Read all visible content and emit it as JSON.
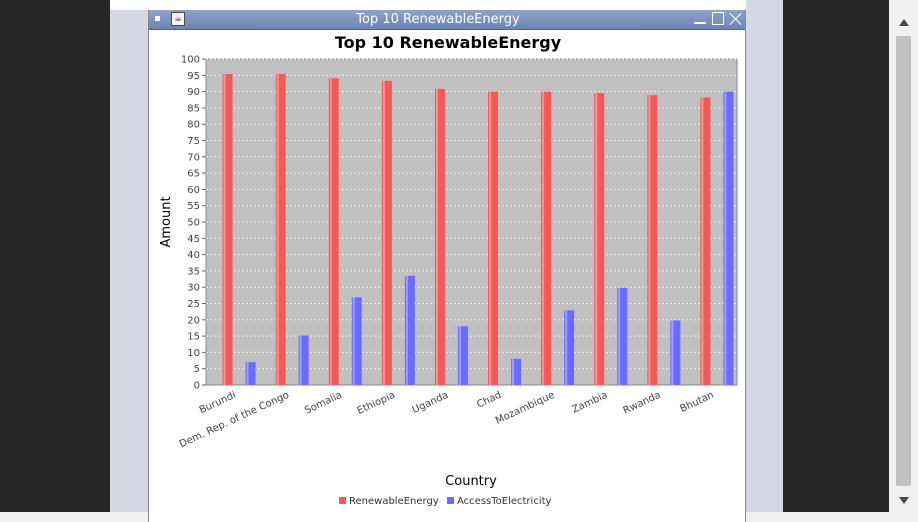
{
  "window": {
    "title": "Top 10 RenewableEnergy"
  },
  "colors": {
    "renewable": "#f25a5a",
    "access": "#6b6bff",
    "plot_bg": "#c0c0c0",
    "grid": "#f0f0f0"
  },
  "chart_data": {
    "type": "bar",
    "title": "Top 10 RenewableEnergy",
    "xlabel": "Country",
    "ylabel": "Amount",
    "ylim": [
      0,
      100
    ],
    "yticks": [
      0,
      5,
      10,
      15,
      20,
      25,
      30,
      35,
      40,
      45,
      50,
      55,
      60,
      65,
      70,
      75,
      80,
      85,
      90,
      95,
      100
    ],
    "grid": true,
    "legend_position": "bottom",
    "categories": [
      "Burundi",
      "Dem. Rep. of the Congo",
      "Somalia",
      "Ethiopia",
      "Uganda",
      "Chad",
      "Mozambique",
      "Zambia",
      "Rwanda",
      "Bhutan"
    ],
    "series": [
      {
        "name": "RenewableEnergy",
        "color": "#f25a5a",
        "values": [
          95.4,
          95.4,
          94.1,
          93.3,
          90.8,
          90.0,
          90.0,
          89.6,
          88.9,
          88.2
        ]
      },
      {
        "name": "AccessToElectricity",
        "color": "#6b6bff",
        "values": [
          7.0,
          15.2,
          26.9,
          33.5,
          18.0,
          8.0,
          22.9,
          29.8,
          19.8,
          90.0
        ]
      }
    ]
  }
}
